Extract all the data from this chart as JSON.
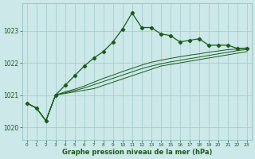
{
  "x": [
    0,
    1,
    2,
    3,
    4,
    5,
    6,
    7,
    8,
    9,
    10,
    11,
    12,
    13,
    14,
    15,
    16,
    17,
    18,
    19,
    20,
    21,
    22,
    23
  ],
  "main_y": [
    1020.75,
    1020.6,
    1020.2,
    1021.0,
    1021.3,
    1021.6,
    1021.9,
    1022.15,
    1022.35,
    1022.65,
    1023.05,
    1023.55,
    1023.1,
    1023.1,
    1022.9,
    1022.85,
    1022.65,
    1022.7,
    1022.75,
    1022.55,
    1022.55,
    1022.55,
    1022.45,
    1022.45
  ],
  "flat1_y": [
    1020.75,
    1020.6,
    1020.2,
    1021.0,
    1021.05,
    1021.1,
    1021.15,
    1021.2,
    1021.3,
    1021.4,
    1021.5,
    1021.6,
    1021.7,
    1021.8,
    1021.9,
    1021.95,
    1022.0,
    1022.05,
    1022.1,
    1022.15,
    1022.2,
    1022.25,
    1022.3,
    1022.35
  ],
  "flat2_y": [
    1020.75,
    1020.6,
    1020.2,
    1021.0,
    1021.07,
    1021.14,
    1021.22,
    1021.32,
    1021.42,
    1021.52,
    1021.62,
    1021.72,
    1021.82,
    1021.9,
    1021.97,
    1022.03,
    1022.08,
    1022.13,
    1022.18,
    1022.23,
    1022.28,
    1022.33,
    1022.38,
    1022.42
  ],
  "flat3_y": [
    1020.75,
    1020.6,
    1020.2,
    1021.0,
    1021.1,
    1021.18,
    1021.28,
    1021.4,
    1021.52,
    1021.62,
    1021.73,
    1021.83,
    1021.93,
    1022.02,
    1022.08,
    1022.14,
    1022.19,
    1022.24,
    1022.28,
    1022.33,
    1022.37,
    1022.41,
    1022.43,
    1022.47
  ],
  "bg_color": "#cce8e8",
  "grid_color": "#99cccc",
  "line_color": "#1a5c1a",
  "ylabel_ticks": [
    1020,
    1021,
    1022,
    1023
  ],
  "xlabel": "Graphe pression niveau de la mer (hPa)",
  "ylim": [
    1019.6,
    1023.85
  ],
  "xlim": [
    -0.5,
    23.5
  ]
}
